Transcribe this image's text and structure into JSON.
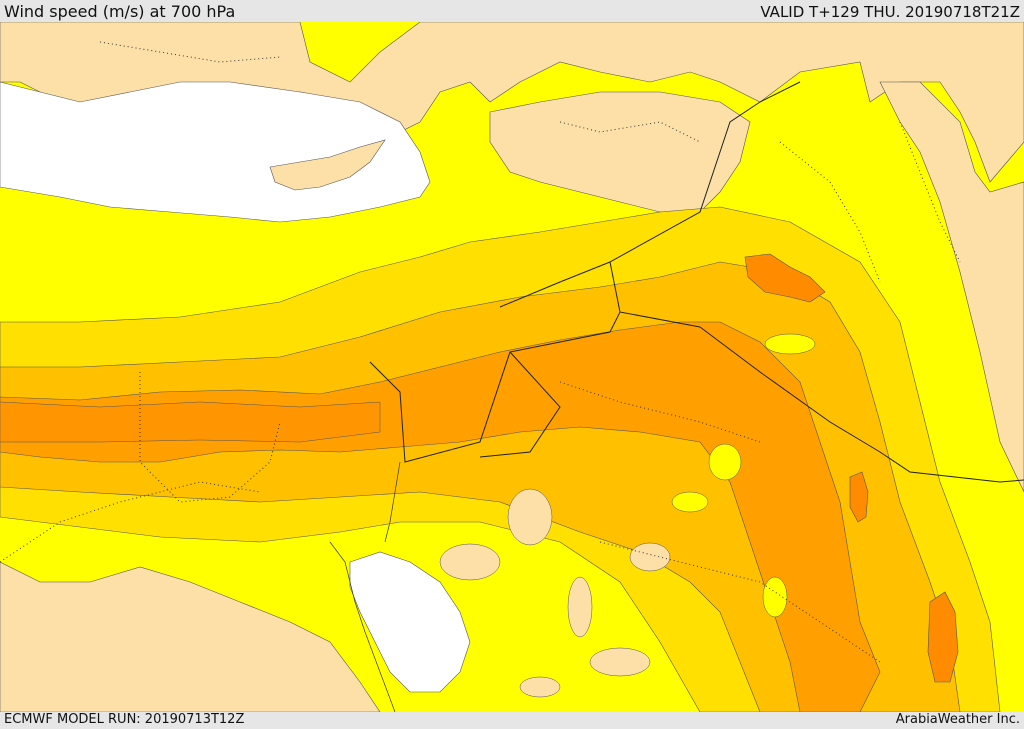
{
  "header": {
    "title": "Wind speed (m/s) at 700 hPa",
    "valid": "VALID T+129 THU. 20190718T21Z"
  },
  "footer": {
    "model_run": "ECMWF MODEL RUN: 20190713T12Z",
    "credit": "ArabiaWeather Inc."
  },
  "colors": {
    "sea": "#ffffff",
    "land_calm": "#fde0a8",
    "band_1": "#ffff00",
    "band_2": "#ffe000",
    "band_3": "#ffc000",
    "band_4": "#ffa000",
    "band_5": "#ff8c00"
  }
}
